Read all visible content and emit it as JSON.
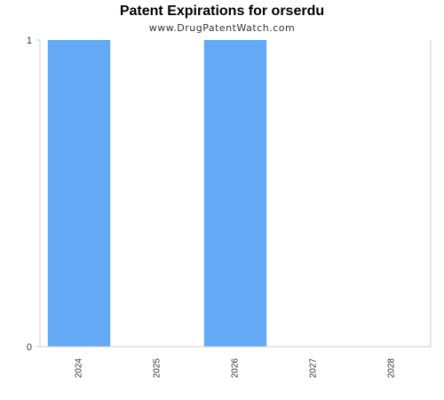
{
  "chart_data": {
    "type": "bar",
    "title": "Patent Expirations for orserdu",
    "subtitle": "www.DrugPatentWatch.com",
    "categories": [
      "2024",
      "2025",
      "2026",
      "2027",
      "2028"
    ],
    "values": [
      1,
      0,
      1,
      0,
      0
    ],
    "ylim": [
      0,
      1
    ],
    "yticks": [
      "0",
      "1"
    ],
    "xlabel": "",
    "ylabel": "",
    "grid": false,
    "bar_color": "#63a9f5",
    "axis_color": "#cccccc"
  }
}
